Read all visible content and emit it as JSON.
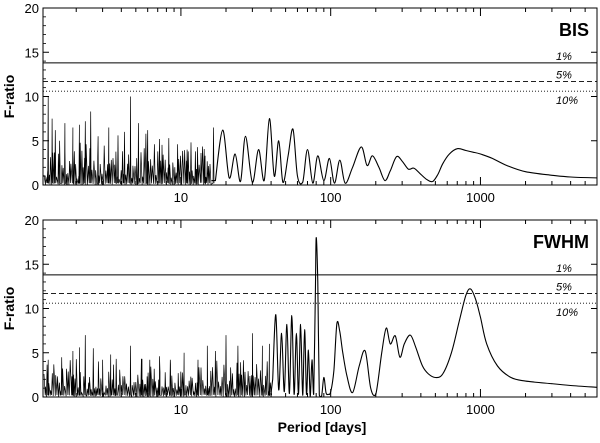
{
  "chart_data": [
    {
      "type": "line",
      "panel_label": "BIS",
      "xlabel": "",
      "ylabel": "F-ratio",
      "x_scale": "log",
      "xlim": [
        1.2,
        6000
      ],
      "ylim": [
        0,
        20
      ],
      "x_ticks": [
        10,
        100,
        1000
      ],
      "y_ticks": [
        0,
        5,
        10,
        15,
        20
      ],
      "grid": false,
      "thresholds": [
        {
          "label": "1%",
          "value": 13.8,
          "style": "solid"
        },
        {
          "label": "5%",
          "value": 11.7,
          "style": "dashed"
        },
        {
          "label": "10%",
          "value": 10.6,
          "style": "dotted"
        }
      ],
      "noise": {
        "x_start": 1.25,
        "x_end": 16,
        "level": 2.2,
        "amplitude": 5.5
      },
      "peaks": [
        {
          "x": 1.3,
          "y": 10.0
        },
        {
          "x": 1.38,
          "y": 7.5
        },
        {
          "x": 1.45,
          "y": 6.2
        },
        {
          "x": 1.55,
          "y": 5.0
        },
        {
          "x": 1.68,
          "y": 7.0
        },
        {
          "x": 1.9,
          "y": 6.5
        },
        {
          "x": 2.1,
          "y": 6.8
        },
        {
          "x": 2.3,
          "y": 7.2
        },
        {
          "x": 2.5,
          "y": 8.3
        },
        {
          "x": 2.8,
          "y": 5.5
        },
        {
          "x": 3.3,
          "y": 6.5
        },
        {
          "x": 3.8,
          "y": 5.6
        },
        {
          "x": 4.2,
          "y": 6.0
        },
        {
          "x": 4.6,
          "y": 10.0
        },
        {
          "x": 5.2,
          "y": 7.0
        },
        {
          "x": 6.0,
          "y": 6.2
        },
        {
          "x": 7.2,
          "y": 5.2
        },
        {
          "x": 8.3,
          "y": 5.3
        },
        {
          "x": 9.5,
          "y": 4.6
        },
        {
          "x": 11.0,
          "y": 4.0
        },
        {
          "x": 12.5,
          "y": 3.8
        },
        {
          "x": 14.5,
          "y": 3.3
        },
        {
          "x": 16.5,
          "y": 6.5
        }
      ],
      "curve": {
        "x": [
          17,
          19,
          21,
          23,
          25,
          27,
          30,
          33,
          36,
          39,
          42,
          45,
          48,
          52,
          56,
          60,
          65,
          70,
          76,
          82,
          90,
          98,
          106,
          115,
          125,
          140,
          160,
          175,
          190,
          210,
          230,
          250,
          275,
          300,
          330,
          360,
          400,
          440,
          480,
          520,
          560,
          620,
          700,
          800,
          900,
          1000,
          1200,
          1500,
          2000,
          3000,
          4000,
          6000
        ],
        "y": [
          0.5,
          6.2,
          0.8,
          3.5,
          0.4,
          5.5,
          0.3,
          4.0,
          0.5,
          7.5,
          1.0,
          5.0,
          0.3,
          3.3,
          6.3,
          1.0,
          0.3,
          4.0,
          0.2,
          3.3,
          0.5,
          3.0,
          0.2,
          2.8,
          0.2,
          2.0,
          4.3,
          2.2,
          3.3,
          2.0,
          0.5,
          1.6,
          3.2,
          2.7,
          1.8,
          1.9,
          1.2,
          0.6,
          0.4,
          1.2,
          2.4,
          3.5,
          4.1,
          3.9,
          3.7,
          3.5,
          3.0,
          2.2,
          1.5,
          1.1,
          0.9,
          0.8
        ]
      }
    },
    {
      "type": "line",
      "panel_label": "FWHM",
      "xlabel": "Period [days]",
      "ylabel": "F-ratio",
      "x_scale": "log",
      "xlim": [
        1.2,
        6000
      ],
      "ylim": [
        0,
        20
      ],
      "x_ticks": [
        10,
        100,
        1000
      ],
      "y_ticks": [
        0,
        5,
        10,
        15,
        20
      ],
      "grid": false,
      "thresholds": [
        {
          "label": "1%",
          "value": 13.8,
          "style": "solid"
        },
        {
          "label": "5%",
          "value": 11.7,
          "style": "dashed"
        },
        {
          "label": "10%",
          "value": 10.6,
          "style": "dotted"
        }
      ],
      "noise": {
        "x_start": 1.25,
        "x_end": 40,
        "level": 1.6,
        "amplitude": 4.2
      },
      "peaks": [
        {
          "x": 1.3,
          "y": 4.2
        },
        {
          "x": 1.6,
          "y": 4.5
        },
        {
          "x": 1.9,
          "y": 5.2
        },
        {
          "x": 2.1,
          "y": 5.6
        },
        {
          "x": 2.3,
          "y": 7.0
        },
        {
          "x": 2.6,
          "y": 5.5
        },
        {
          "x": 3.0,
          "y": 4.2
        },
        {
          "x": 3.4,
          "y": 4.8
        },
        {
          "x": 3.7,
          "y": 4.3
        },
        {
          "x": 4.6,
          "y": 5.8
        },
        {
          "x": 5.5,
          "y": 4.3
        },
        {
          "x": 6.2,
          "y": 4.2
        },
        {
          "x": 7.2,
          "y": 4.6
        },
        {
          "x": 8.5,
          "y": 4.2
        },
        {
          "x": 10.5,
          "y": 5.0
        },
        {
          "x": 13,
          "y": 4.2
        },
        {
          "x": 15,
          "y": 5.8
        },
        {
          "x": 17,
          "y": 5.2
        },
        {
          "x": 20,
          "y": 7.0
        },
        {
          "x": 24,
          "y": 5.8
        },
        {
          "x": 30,
          "y": 7.2
        },
        {
          "x": 35,
          "y": 5.8
        },
        {
          "x": 39,
          "y": 6.0
        }
      ],
      "curve": {
        "x": [
          41,
          43,
          45,
          47,
          49,
          51,
          53,
          55,
          57,
          59,
          61,
          63,
          65,
          67,
          69,
          71,
          73,
          75,
          77,
          79,
          80,
          82,
          84,
          87,
          90,
          93,
          96,
          100,
          105,
          110,
          115,
          120,
          128,
          140,
          155,
          170,
          185,
          200,
          220,
          235,
          250,
          270,
          290,
          310,
          340,
          370,
          410,
          450,
          500,
          560,
          640,
          720,
          800,
          860,
          930,
          1000,
          1100,
          1300,
          1600,
          2000,
          3000,
          4000,
          6000
        ],
        "y": [
          2.0,
          9.3,
          0.8,
          7.2,
          0.6,
          8.2,
          0.4,
          9.2,
          0.3,
          7.2,
          0.3,
          8.2,
          0.2,
          7.6,
          0.3,
          5.3,
          0.1,
          4.2,
          0.3,
          12.0,
          18.0,
          13.0,
          0.2,
          0.1,
          2.2,
          0.5,
          0.3,
          0.6,
          3.0,
          8.3,
          7.4,
          5.2,
          2.5,
          0.5,
          3.5,
          5.2,
          1.0,
          0.3,
          5.2,
          7.8,
          6.0,
          6.9,
          4.5,
          6.0,
          7.0,
          5.6,
          3.5,
          2.6,
          2.2,
          2.6,
          5.0,
          8.5,
          11.5,
          12.2,
          11.0,
          9.0,
          6.0,
          3.5,
          2.2,
          1.8,
          1.5,
          1.3,
          1.1
        ]
      }
    }
  ]
}
